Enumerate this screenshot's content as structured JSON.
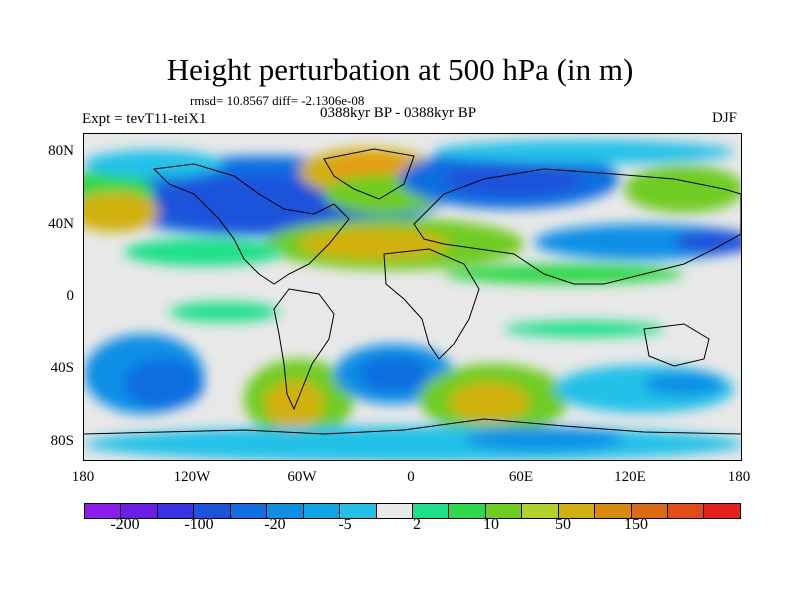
{
  "title": "Height perturbation at 500 hPa (in m)",
  "stats_line": "rmsd= 10.8567 diff= -2.1306e-08",
  "expt_label": "Expt = tevT11-teiX1",
  "period_label": "0388kyr BP - 0388kyr BP",
  "season_label": "DJF",
  "lat_labels": [
    "80N",
    "40N",
    "0",
    "40S",
    "80S"
  ],
  "lon_labels": [
    "180",
    "120W",
    "60W",
    "0",
    "60E",
    "120E",
    "180"
  ],
  "colorbar": {
    "colors": [
      "#8c1df0",
      "#6a1ee8",
      "#3b32e6",
      "#1d52db",
      "#0f6ee0",
      "#0d8fe6",
      "#0fa6e8",
      "#22c1e8",
      "#e8e8e8",
      "#1de08a",
      "#2dd84a",
      "#6fcc22",
      "#b0d22a",
      "#d1b10f",
      "#d88a0d",
      "#dc6a10",
      "#e24c16",
      "#e6201a"
    ],
    "tick_labels": [
      "-200",
      "-100",
      "-20",
      "-5",
      "2",
      "10",
      "50",
      "150"
    ]
  },
  "map_colors": {
    "background": "#e8e8e8",
    "deep_blue": "#1d52db",
    "blue": "#0f6ee0",
    "mid_blue": "#0d8fe6",
    "light_blue": "#22c1e8",
    "green": "#1de08a",
    "lime": "#6fcc22",
    "yellow": "#b0d22a",
    "orange": "#d1b10f"
  }
}
